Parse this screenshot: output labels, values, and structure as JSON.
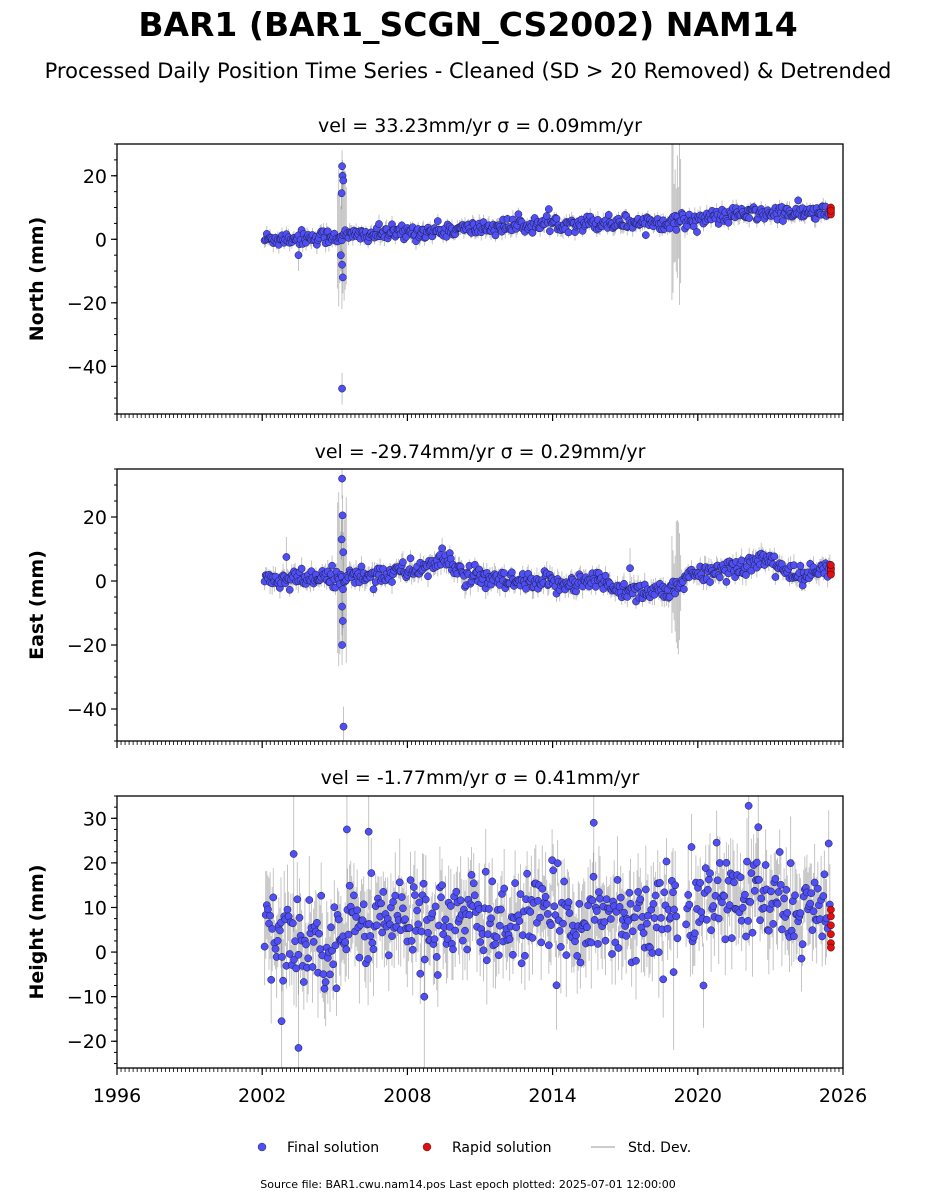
{
  "figure": {
    "title": "BAR1 (BAR1_SCGN_CS2002) NAM14",
    "subtitle": "Processed Daily Position Time Series - Cleaned (SD > 20 Removed) & Detrended",
    "footer": "Source file: BAR1.cwu.nam14.pos  Last epoch plotted: 2025-07-01 12:00:00",
    "colors": {
      "final": "#4f4ff5",
      "rapid": "#e01010",
      "stddev": "#555555",
      "axis": "#000000"
    }
  },
  "legend": [
    {
      "label": "Final solution",
      "kind": "final"
    },
    {
      "label": "Rapid solution",
      "kind": "rapid"
    },
    {
      "label": "Std. Dev.",
      "kind": "stddev"
    }
  ],
  "chart_data": [
    {
      "type": "scatter",
      "title": "vel = 33.23mm/yr   σ = 0.09mm/yr",
      "ylabel": "North (mm)",
      "xlim": [
        1996,
        2026
      ],
      "ylim": [
        -55,
        30
      ],
      "yticks": [
        20,
        0,
        -20,
        -40
      ],
      "x_start": 2002.1,
      "x_end": 2025.5,
      "rapid_x": 2025.5,
      "trend": [
        [
          2002.1,
          0
        ],
        [
          2005.3,
          1
        ],
        [
          2010,
          3
        ],
        [
          2014,
          5
        ],
        [
          2019,
          5.5
        ],
        [
          2022,
          8
        ],
        [
          2025.5,
          8.5
        ]
      ],
      "scatter_sd": 1.2,
      "err_sd": 2.0,
      "outliers": [
        [
          2005.3,
          23
        ],
        [
          2005.32,
          20
        ],
        [
          2005.28,
          14.5
        ],
        [
          2005.35,
          18.5
        ],
        [
          2005.25,
          -5
        ],
        [
          2005.3,
          -8
        ],
        [
          2005.33,
          -12
        ],
        [
          2005.3,
          -47
        ],
        [
          2003.5,
          -5
        ]
      ],
      "noisy_windows": [
        [
          2005.1,
          2005.5,
          15
        ],
        [
          2018.9,
          2019.3,
          18
        ]
      ],
      "rapid_values": [
        8.5,
        9.5,
        10,
        7.8,
        9
      ]
    },
    {
      "type": "scatter",
      "title": "vel = -29.74mm/yr   σ = 0.29mm/yr",
      "ylabel": "East (mm)",
      "xlim": [
        1996,
        2026
      ],
      "ylim": [
        -50,
        35
      ],
      "yticks": [
        20,
        0,
        -20,
        -40
      ],
      "x_start": 2002.1,
      "x_end": 2025.5,
      "rapid_x": 2025.5,
      "trend": [
        [
          2002.1,
          0
        ],
        [
          2005.3,
          1
        ],
        [
          2008,
          3
        ],
        [
          2009.7,
          6.5
        ],
        [
          2010.5,
          1
        ],
        [
          2013,
          -1
        ],
        [
          2016,
          0
        ],
        [
          2017,
          -3
        ],
        [
          2019.2,
          -3
        ],
        [
          2019.5,
          1
        ],
        [
          2022,
          5
        ],
        [
          2023,
          7
        ],
        [
          2024,
          1
        ],
        [
          2025.5,
          4
        ]
      ],
      "scatter_sd": 1.6,
      "err_sd": 2.5,
      "outliers": [
        [
          2005.3,
          32
        ],
        [
          2005.32,
          20.5
        ],
        [
          2005.28,
          13
        ],
        [
          2005.35,
          9
        ],
        [
          2005.3,
          -8
        ],
        [
          2005.33,
          -12.5
        ],
        [
          2005.3,
          -20
        ],
        [
          2005.36,
          -45.5
        ],
        [
          2003.0,
          7.5
        ],
        [
          2017.2,
          4
        ]
      ],
      "noisy_windows": [
        [
          2005.1,
          2005.5,
          20
        ],
        [
          2018.9,
          2019.3,
          14
        ]
      ],
      "rapid_values": [
        4,
        2.5,
        3.5,
        2,
        5
      ]
    },
    {
      "type": "scatter",
      "title": "vel = -1.77mm/yr   σ = 0.41mm/yr",
      "ylabel": "Height (mm)",
      "xlim": [
        1996,
        2026
      ],
      "ylim": [
        -26,
        35
      ],
      "yticks": [
        30,
        20,
        10,
        0,
        -10,
        -20
      ],
      "x_start": 2002.1,
      "x_end": 2025.5,
      "rapid_x": 2025.5,
      "gap": [
        2019.2,
        2019.5
      ],
      "trend": [
        [
          2002.1,
          3
        ],
        [
          2005.3,
          3
        ],
        [
          2006,
          7
        ],
        [
          2012,
          7
        ],
        [
          2016,
          8
        ],
        [
          2019.2,
          8
        ],
        [
          2019.5,
          11
        ],
        [
          2022,
          12
        ],
        [
          2025.5,
          8
        ]
      ],
      "scatter_sd": 5.0,
      "err_sd": 7.0,
      "outliers": [
        [
          2002.8,
          -15.5
        ],
        [
          2003.5,
          -21.5
        ],
        [
          2003.3,
          22
        ],
        [
          2005.5,
          27.5
        ],
        [
          2006.4,
          27
        ],
        [
          2015.7,
          29
        ],
        [
          2022.1,
          32.8
        ],
        [
          2022.5,
          28
        ],
        [
          2019.0,
          -4.5
        ],
        [
          2008.7,
          -10
        ]
      ],
      "noisy_windows": [],
      "rapid_values": [
        9.5,
        8,
        6,
        4,
        2,
        1
      ]
    }
  ],
  "xticks": [
    1996,
    2002,
    2008,
    2014,
    2020,
    2026
  ]
}
